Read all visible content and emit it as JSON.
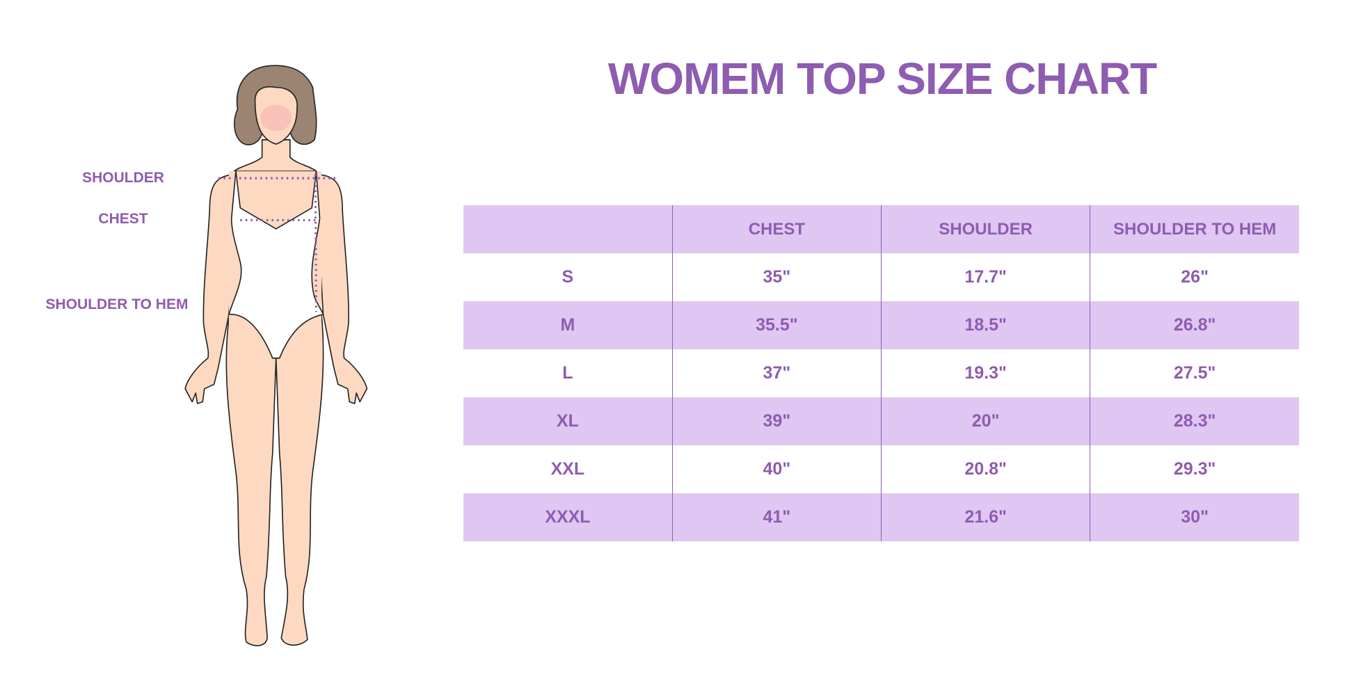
{
  "title": "WOMEM TOP SIZE CHART",
  "figure_labels": {
    "shoulder": "SHOULDER",
    "chest": "CHEST",
    "shoulder_to_hem": "SHOULDER TO HEM"
  },
  "colors": {
    "accent": "#8e5cb0",
    "row_shade": "#e0c6f3",
    "skin": "#fcd9c0",
    "hair": "#9b8471"
  },
  "table": {
    "headers": [
      "",
      "CHEST",
      "SHOULDER",
      "SHOULDER TO HEM"
    ],
    "rows": [
      [
        "S",
        "35\"",
        "17.7\"",
        "26\""
      ],
      [
        "M",
        "35.5\"",
        "18.5\"",
        "26.8\""
      ],
      [
        "L",
        "37\"",
        "19.3\"",
        "27.5\""
      ],
      [
        "XL",
        "39\"",
        "20\"",
        "28.3\""
      ],
      [
        "XXL",
        "40\"",
        "20.8\"",
        "29.3\""
      ],
      [
        "XXXL",
        "41\"",
        "21.6\"",
        "30\""
      ]
    ]
  }
}
